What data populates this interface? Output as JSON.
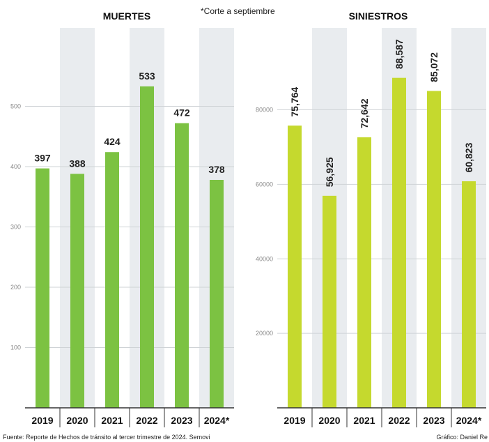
{
  "note": "*Corte a septiembre",
  "footer": {
    "source": "Fuente: Reporte de Hechos de tránsito al tercer trimestre de 2024. Semovi",
    "credit": "Gráfico: Daniel Re"
  },
  "colors": {
    "muertes_bar": "#7cc242",
    "siniestros_bar": "#c5d92e",
    "shade": "#e9ecef",
    "grid": "#cfd3d6",
    "axis": "#333333"
  },
  "chart_data": [
    {
      "type": "bar",
      "title": "MUERTES",
      "categories": [
        "2019",
        "2020",
        "2021",
        "2022",
        "2023",
        "2024*"
      ],
      "values": [
        397,
        388,
        424,
        533,
        472,
        378
      ],
      "value_labels": [
        "397",
        "388",
        "424",
        "533",
        "472",
        "378"
      ],
      "yticks": [
        100,
        200,
        300,
        400,
        500
      ],
      "ytick_labels": [
        "100",
        "200",
        "300",
        "400",
        "500"
      ],
      "ylim": [
        0,
        630
      ],
      "grid": true,
      "label_orientation": "horizontal"
    },
    {
      "type": "bar",
      "title": "SINIESTROS",
      "categories": [
        "2019",
        "2020",
        "2021",
        "2022",
        "2023",
        "2024*"
      ],
      "values": [
        75764,
        56925,
        72642,
        88587,
        85072,
        60823
      ],
      "value_labels": [
        "75,764",
        "56,925",
        "72,642",
        "88,587",
        "85,072",
        "60,823"
      ],
      "yticks": [
        20000,
        40000,
        60000,
        80000
      ],
      "ytick_labels": [
        "20000",
        "40000",
        "60000",
        "80000"
      ],
      "ylim": [
        0,
        102000
      ],
      "grid": true,
      "label_orientation": "vertical"
    }
  ]
}
